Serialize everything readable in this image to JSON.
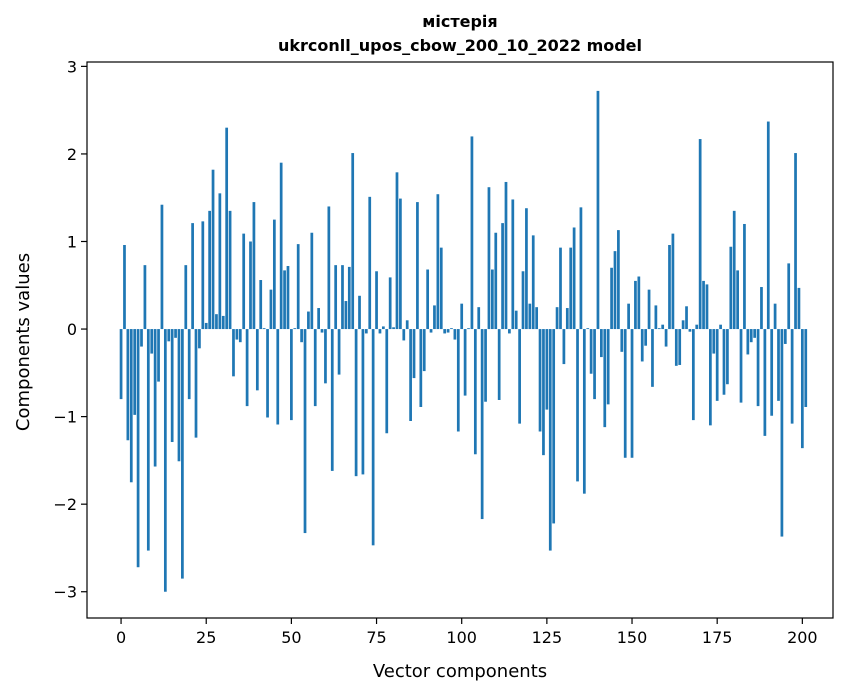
{
  "chart_data": {
    "type": "bar",
    "title": "містерія",
    "subtitle": "ukrconll_upos_cbow_200_10_2022 model",
    "xlabel": "Vector components",
    "ylabel": "Components values",
    "xlim": [
      -10,
      209
    ],
    "ylim": [
      -3.3,
      3.05
    ],
    "xticks": [
      0,
      25,
      50,
      75,
      100,
      125,
      150,
      175,
      200
    ],
    "yticks": [
      -3,
      -2,
      -1,
      0,
      1,
      2,
      3
    ],
    "bar_color": "#1f77b4",
    "grid": false,
    "values": [
      -0.8,
      0.96,
      -1.27,
      -1.75,
      -0.98,
      -2.72,
      -0.2,
      0.73,
      -2.53,
      -0.28,
      -1.57,
      -0.6,
      1.42,
      -3.0,
      -0.14,
      -1.29,
      -0.1,
      -1.51,
      -2.85,
      0.73,
      -0.8,
      1.21,
      -1.24,
      -0.22,
      1.23,
      0.07,
      1.35,
      1.82,
      0.17,
      1.55,
      0.15,
      2.3,
      1.35,
      -0.54,
      -0.12,
      -0.15,
      1.09,
      -0.88,
      1.0,
      1.45,
      -0.7,
      0.56,
      0.01,
      -1.01,
      0.45,
      1.25,
      -1.09,
      1.9,
      0.67,
      0.72,
      -1.04,
      0.01,
      0.97,
      -0.15,
      -2.33,
      0.2,
      1.1,
      -0.88,
      0.24,
      -0.04,
      -0.62,
      1.4,
      -1.62,
      0.73,
      -0.52,
      0.73,
      0.32,
      0.71,
      2.01,
      -1.68,
      0.38,
      -1.66,
      -0.05,
      1.51,
      -2.47,
      0.66,
      -0.05,
      0.03,
      -1.19,
      0.59,
      0.02,
      1.79,
      1.49,
      -0.13,
      0.1,
      -1.05,
      -0.56,
      1.45,
      -0.89,
      -0.48,
      0.68,
      -0.04,
      0.27,
      1.54,
      0.93,
      -0.05,
      -0.04,
      0.01,
      -0.12,
      -1.17,
      0.29,
      -0.76,
      0.01,
      2.2,
      -1.43,
      0.25,
      -2.17,
      -0.83,
      1.62,
      0.68,
      1.1,
      -0.81,
      1.21,
      1.68,
      -0.05,
      1.48,
      0.21,
      -1.08,
      0.66,
      1.38,
      0.29,
      1.07,
      0.25,
      -1.17,
      -1.44,
      -0.92,
      -2.53,
      -2.22,
      0.25,
      0.93,
      -0.4,
      0.24,
      0.93,
      1.16,
      -1.74,
      1.39,
      -1.88,
      0.01,
      -0.51,
      -0.8,
      2.72,
      -0.32,
      -1.12,
      -0.86,
      0.7,
      0.89,
      1.13,
      -0.26,
      -1.47,
      0.29,
      -1.47,
      0.55,
      0.6,
      -0.37,
      -0.19,
      0.45,
      -0.66,
      0.27,
      0.01,
      0.05,
      -0.2,
      0.96,
      1.09,
      -0.42,
      -0.41,
      0.1,
      0.26,
      -0.03,
      -1.04,
      0.05,
      2.17,
      0.55,
      0.51,
      -1.1,
      -0.28,
      -0.82,
      0.05,
      -0.75,
      -0.63,
      0.94,
      1.35,
      0.67,
      -0.84,
      1.2,
      -0.29,
      -0.15,
      -0.1,
      -0.88,
      0.48,
      -1.22,
      2.37,
      -0.99,
      0.29,
      -0.82,
      -2.37,
      -0.17,
      0.75,
      -1.08,
      2.01,
      0.47,
      -1.36,
      -0.89
    ]
  }
}
